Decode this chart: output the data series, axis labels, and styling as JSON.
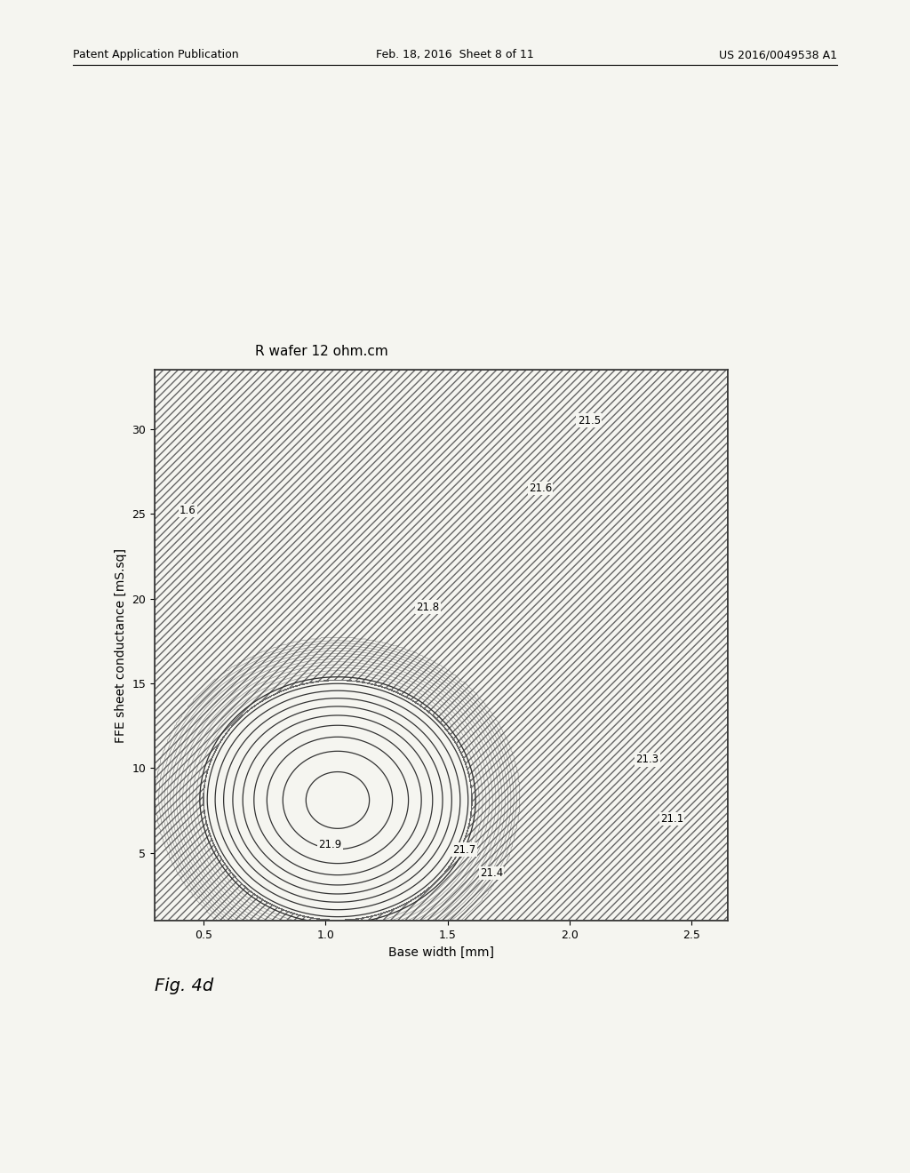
{
  "title": "R wafer 12 ohm.cm",
  "xlabel": "Base width [mm]",
  "ylabel": "FFE sheet conductance [mS.sq]",
  "fig_label": "Fig. 4d",
  "header_left": "Patent Application Publication",
  "header_mid": "Feb. 18, 2016  Sheet 8 of 11",
  "header_right": "US 2016/0049538 A1",
  "xlim": [
    0.3,
    2.65
  ],
  "ylim": [
    1.0,
    33.5
  ],
  "xticks": [
    0.5,
    1.0,
    1.5,
    2.0,
    2.5
  ],
  "yticks": [
    5,
    10,
    15,
    20,
    25,
    30
  ],
  "background_color": "#f5f5f0",
  "contour_color": "#333333",
  "peak_x": 1.05,
  "peak_y": 8.0,
  "title_fontsize": 11,
  "label_fontsize": 10,
  "tick_fontsize": 9,
  "fig_label_fontsize": 14,
  "header_fontsize": 9
}
